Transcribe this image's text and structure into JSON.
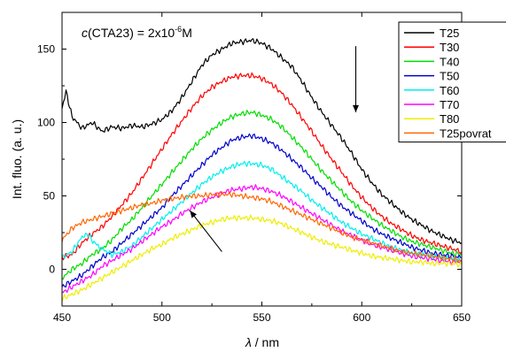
{
  "chart_data": {
    "type": "line",
    "annotation": {
      "prefix": "c",
      "body": "(CTA23) = 2x10",
      "exponent": "-6",
      "suffix": "M"
    },
    "xlabel": {
      "symbol": "λ",
      "unit": " / nm"
    },
    "ylabel": "Int. fluo. (a. u.)",
    "xlim": [
      450,
      650
    ],
    "ylim": [
      -25,
      175
    ],
    "xticks": [
      450,
      500,
      550,
      600,
      650
    ],
    "yticks": [
      0,
      50,
      100,
      150
    ],
    "grid": false,
    "legend_position": "top-right",
    "arrows": [
      {
        "from": [
          597,
          152
        ],
        "to": [
          597,
          107
        ],
        "direction": "down"
      },
      {
        "from": [
          530,
          12
        ],
        "to": [
          514,
          40
        ],
        "direction": "up"
      }
    ],
    "series": [
      {
        "name": "T25",
        "color": "#000000",
        "x": [
          450,
          452,
          455,
          460,
          465,
          470,
          475,
          480,
          485,
          490,
          495,
          500,
          505,
          510,
          515,
          520,
          525,
          530,
          535,
          540,
          545,
          550,
          555,
          560,
          565,
          570,
          575,
          580,
          585,
          590,
          595,
          600,
          605,
          610,
          615,
          620,
          625,
          630,
          635,
          640,
          645,
          650
        ],
        "y": [
          110,
          121,
          104,
          96,
          100,
          94,
          97,
          96,
          98,
          97,
          99,
          102,
          108,
          117,
          128,
          139,
          146,
          150,
          154,
          155,
          156,
          154,
          150,
          144,
          138,
          128,
          117,
          107,
          98,
          89,
          79,
          68,
          59,
          51,
          45,
          39,
          34,
          30,
          26,
          23,
          20,
          18
        ]
      },
      {
        "name": "T30",
        "color": "#ff0000",
        "x": [
          450,
          455,
          460,
          465,
          470,
          475,
          480,
          485,
          490,
          495,
          500,
          505,
          510,
          515,
          520,
          525,
          530,
          535,
          540,
          545,
          550,
          555,
          560,
          565,
          570,
          575,
          580,
          585,
          590,
          595,
          600,
          605,
          610,
          615,
          620,
          625,
          630,
          635,
          640,
          645,
          650
        ],
        "y": [
          8,
          10,
          18,
          24,
          29,
          36,
          44,
          52,
          62,
          72,
          82,
          92,
          101,
          110,
          118,
          124,
          128,
          131,
          132,
          132,
          130,
          126,
          120,
          112,
          103,
          94,
          84,
          75,
          66,
          57,
          49,
          42,
          36,
          31,
          27,
          23,
          20,
          18,
          16,
          14,
          12
        ]
      },
      {
        "name": "T40",
        "color": "#00dd00",
        "x": [
          450,
          455,
          460,
          465,
          470,
          475,
          480,
          485,
          490,
          495,
          500,
          505,
          510,
          515,
          520,
          525,
          530,
          535,
          540,
          545,
          550,
          555,
          560,
          565,
          570,
          575,
          580,
          585,
          590,
          595,
          600,
          605,
          610,
          615,
          620,
          625,
          630,
          635,
          640,
          645,
          650
        ],
        "y": [
          -6,
          0,
          4,
          10,
          14,
          20,
          28,
          34,
          42,
          50,
          58,
          66,
          74,
          82,
          89,
          95,
          100,
          104,
          106,
          107,
          105,
          102,
          97,
          90,
          83,
          75,
          67,
          60,
          53,
          46,
          40,
          35,
          30,
          26,
          22,
          19,
          17,
          15,
          13,
          11,
          10
        ]
      },
      {
        "name": "T50",
        "color": "#0000cc",
        "x": [
          450,
          455,
          460,
          465,
          470,
          475,
          480,
          485,
          490,
          495,
          500,
          505,
          510,
          515,
          520,
          525,
          530,
          535,
          540,
          545,
          550,
          555,
          560,
          565,
          570,
          575,
          580,
          585,
          590,
          595,
          600,
          605,
          610,
          615,
          620,
          625,
          630,
          635,
          640,
          645,
          650
        ],
        "y": [
          -12,
          -8,
          -4,
          2,
          8,
          12,
          18,
          24,
          30,
          36,
          42,
          50,
          57,
          64,
          71,
          78,
          83,
          88,
          90,
          91,
          89,
          86,
          81,
          75,
          69,
          62,
          56,
          49,
          43,
          38,
          33,
          28,
          24,
          21,
          18,
          15,
          13,
          11,
          10,
          9,
          8
        ]
      },
      {
        "name": "T60",
        "color": "#00eeee",
        "x": [
          450,
          455,
          460,
          463,
          466,
          470,
          475,
          480,
          485,
          490,
          495,
          500,
          505,
          510,
          515,
          520,
          525,
          530,
          535,
          540,
          545,
          550,
          555,
          560,
          565,
          570,
          575,
          580,
          585,
          590,
          595,
          600,
          605,
          610,
          615,
          620,
          625,
          630,
          635,
          640,
          645,
          650
        ],
        "y": [
          8,
          12,
          22,
          24,
          18,
          14,
          10,
          12,
          16,
          22,
          28,
          34,
          40,
          46,
          52,
          58,
          63,
          67,
          70,
          72,
          72,
          71,
          68,
          63,
          58,
          53,
          47,
          42,
          37,
          32,
          28,
          24,
          21,
          18,
          15,
          13,
          11,
          10,
          9,
          8,
          7,
          6
        ]
      },
      {
        "name": "T70",
        "color": "#ff00ff",
        "x": [
          450,
          455,
          460,
          465,
          470,
          475,
          480,
          485,
          490,
          495,
          500,
          505,
          510,
          515,
          520,
          525,
          530,
          535,
          540,
          545,
          550,
          555,
          560,
          565,
          570,
          575,
          580,
          585,
          590,
          595,
          600,
          605,
          610,
          615,
          620,
          625,
          630,
          635,
          640,
          645,
          650
        ],
        "y": [
          -16,
          -12,
          -8,
          -4,
          2,
          6,
          10,
          14,
          19,
          24,
          29,
          33,
          38,
          42,
          46,
          49,
          52,
          54,
          55,
          56,
          55,
          53,
          50,
          46,
          42,
          38,
          34,
          30,
          26,
          23,
          20,
          17,
          15,
          13,
          11,
          9,
          8,
          7,
          6,
          5,
          5
        ]
      },
      {
        "name": "T80",
        "color": "#eeee00",
        "x": [
          450,
          455,
          460,
          465,
          470,
          475,
          480,
          485,
          490,
          495,
          500,
          505,
          510,
          515,
          520,
          525,
          530,
          535,
          540,
          545,
          550,
          555,
          560,
          565,
          570,
          575,
          580,
          585,
          590,
          595,
          600,
          605,
          610,
          615,
          620,
          625,
          630,
          635,
          640,
          645,
          650
        ],
        "y": [
          -20,
          -17,
          -14,
          -10,
          -6,
          -2,
          2,
          6,
          10,
          14,
          17,
          21,
          24,
          27,
          30,
          32,
          34,
          35,
          35,
          35,
          34,
          33,
          31,
          28,
          25,
          22,
          19,
          17,
          15,
          13,
          11,
          9,
          8,
          7,
          6,
          5,
          5,
          4,
          4,
          4,
          3
        ]
      },
      {
        "name": "T25povrat",
        "color": "#ff6600",
        "x": [
          450,
          455,
          460,
          465,
          470,
          475,
          480,
          485,
          490,
          495,
          500,
          505,
          510,
          515,
          520,
          525,
          530,
          535,
          540,
          545,
          550,
          555,
          560,
          565,
          570,
          575,
          580,
          585,
          590,
          595,
          600,
          605,
          610,
          615,
          620,
          625,
          630,
          635,
          640,
          645,
          650
        ],
        "y": [
          20,
          28,
          32,
          34,
          36,
          38,
          40,
          42,
          44,
          45,
          47,
          48,
          49,
          50,
          50,
          51,
          51,
          51,
          50,
          49,
          48,
          46,
          43,
          40,
          37,
          34,
          31,
          28,
          25,
          22,
          20,
          18,
          16,
          14,
          12,
          11,
          10,
          9,
          8,
          7,
          6
        ]
      }
    ]
  }
}
